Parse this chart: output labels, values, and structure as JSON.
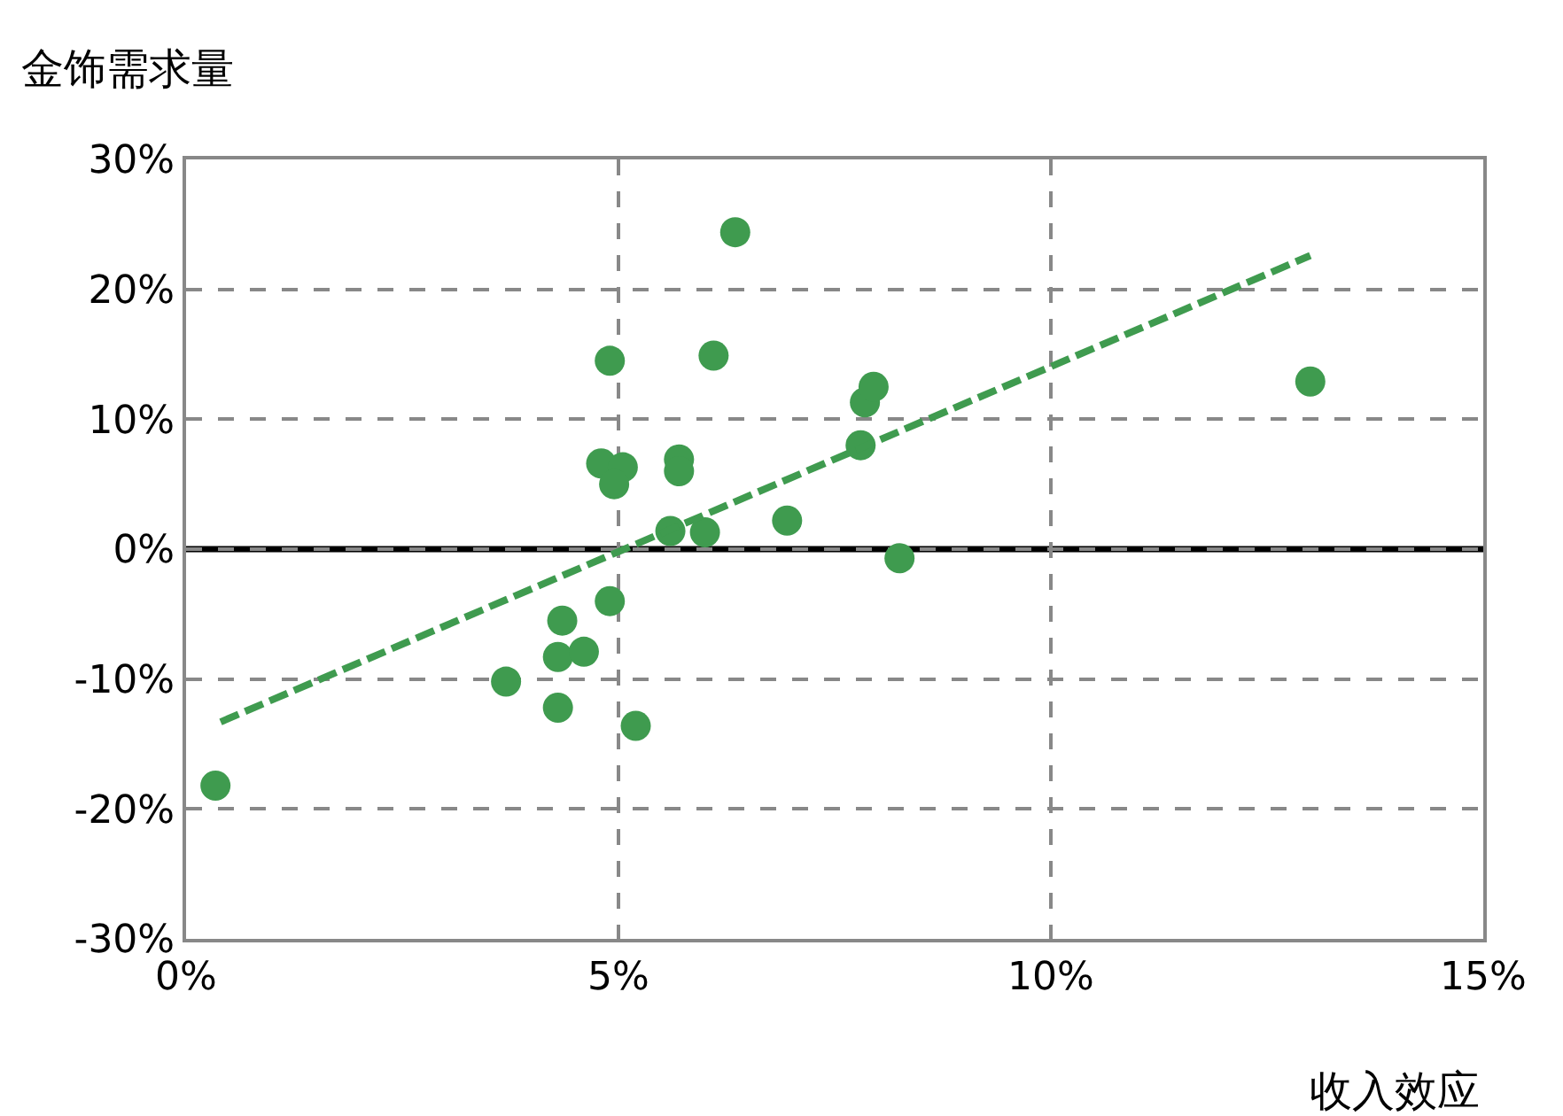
{
  "chart_data": {
    "type": "scatter",
    "ylabel": "金饰需求量",
    "xlabel": "收入效应",
    "xlim": [
      0,
      15
    ],
    "ylim": [
      -30,
      30
    ],
    "xticks": [
      {
        "value": 0,
        "label": "0%"
      },
      {
        "value": 5,
        "label": "5%"
      },
      {
        "value": 10,
        "label": "10%"
      },
      {
        "value": 15,
        "label": "15%"
      }
    ],
    "yticks": [
      {
        "value": -30,
        "label": "-30%"
      },
      {
        "value": -20,
        "label": "-20%"
      },
      {
        "value": -10,
        "label": "-10%"
      },
      {
        "value": 0,
        "label": "0%"
      },
      {
        "value": 10,
        "label": "10%"
      },
      {
        "value": 20,
        "label": "20%"
      },
      {
        "value": 30,
        "label": "30%"
      }
    ],
    "grid": true,
    "legend": false,
    "marker": "circle",
    "series": [
      {
        "color": "#3f9b4f",
        "x": [
          0.34,
          3.7,
          4.3,
          4.3,
          4.6,
          4.35,
          4.9,
          5.2,
          4.9,
          4.8,
          5.05,
          4.95,
          5.7,
          5.7,
          5.6,
          6.0,
          6.1,
          6.35,
          6.95,
          7.8,
          7.85,
          7.95,
          8.25,
          13.0
        ],
        "values": [
          -18.2,
          -10.2,
          -12.2,
          -8.3,
          -7.9,
          -5.5,
          -4.0,
          -13.6,
          14.5,
          6.6,
          6.3,
          5.0,
          6.9,
          6.0,
          1.4,
          1.3,
          14.9,
          24.4,
          2.2,
          8.0,
          11.3,
          12.5,
          -0.7,
          12.9
        ]
      },
      {
        "type": "line",
        "color": "#3f9b4f",
        "line_style": "dashed",
        "marker": "none",
        "x": [
          0.4,
          13.0
        ],
        "values": [
          -13.3,
          22.6
        ]
      }
    ],
    "ref_lines": [
      {
        "axis": "y",
        "value": 0,
        "color": "#000000",
        "line_style": "solid"
      }
    ]
  }
}
